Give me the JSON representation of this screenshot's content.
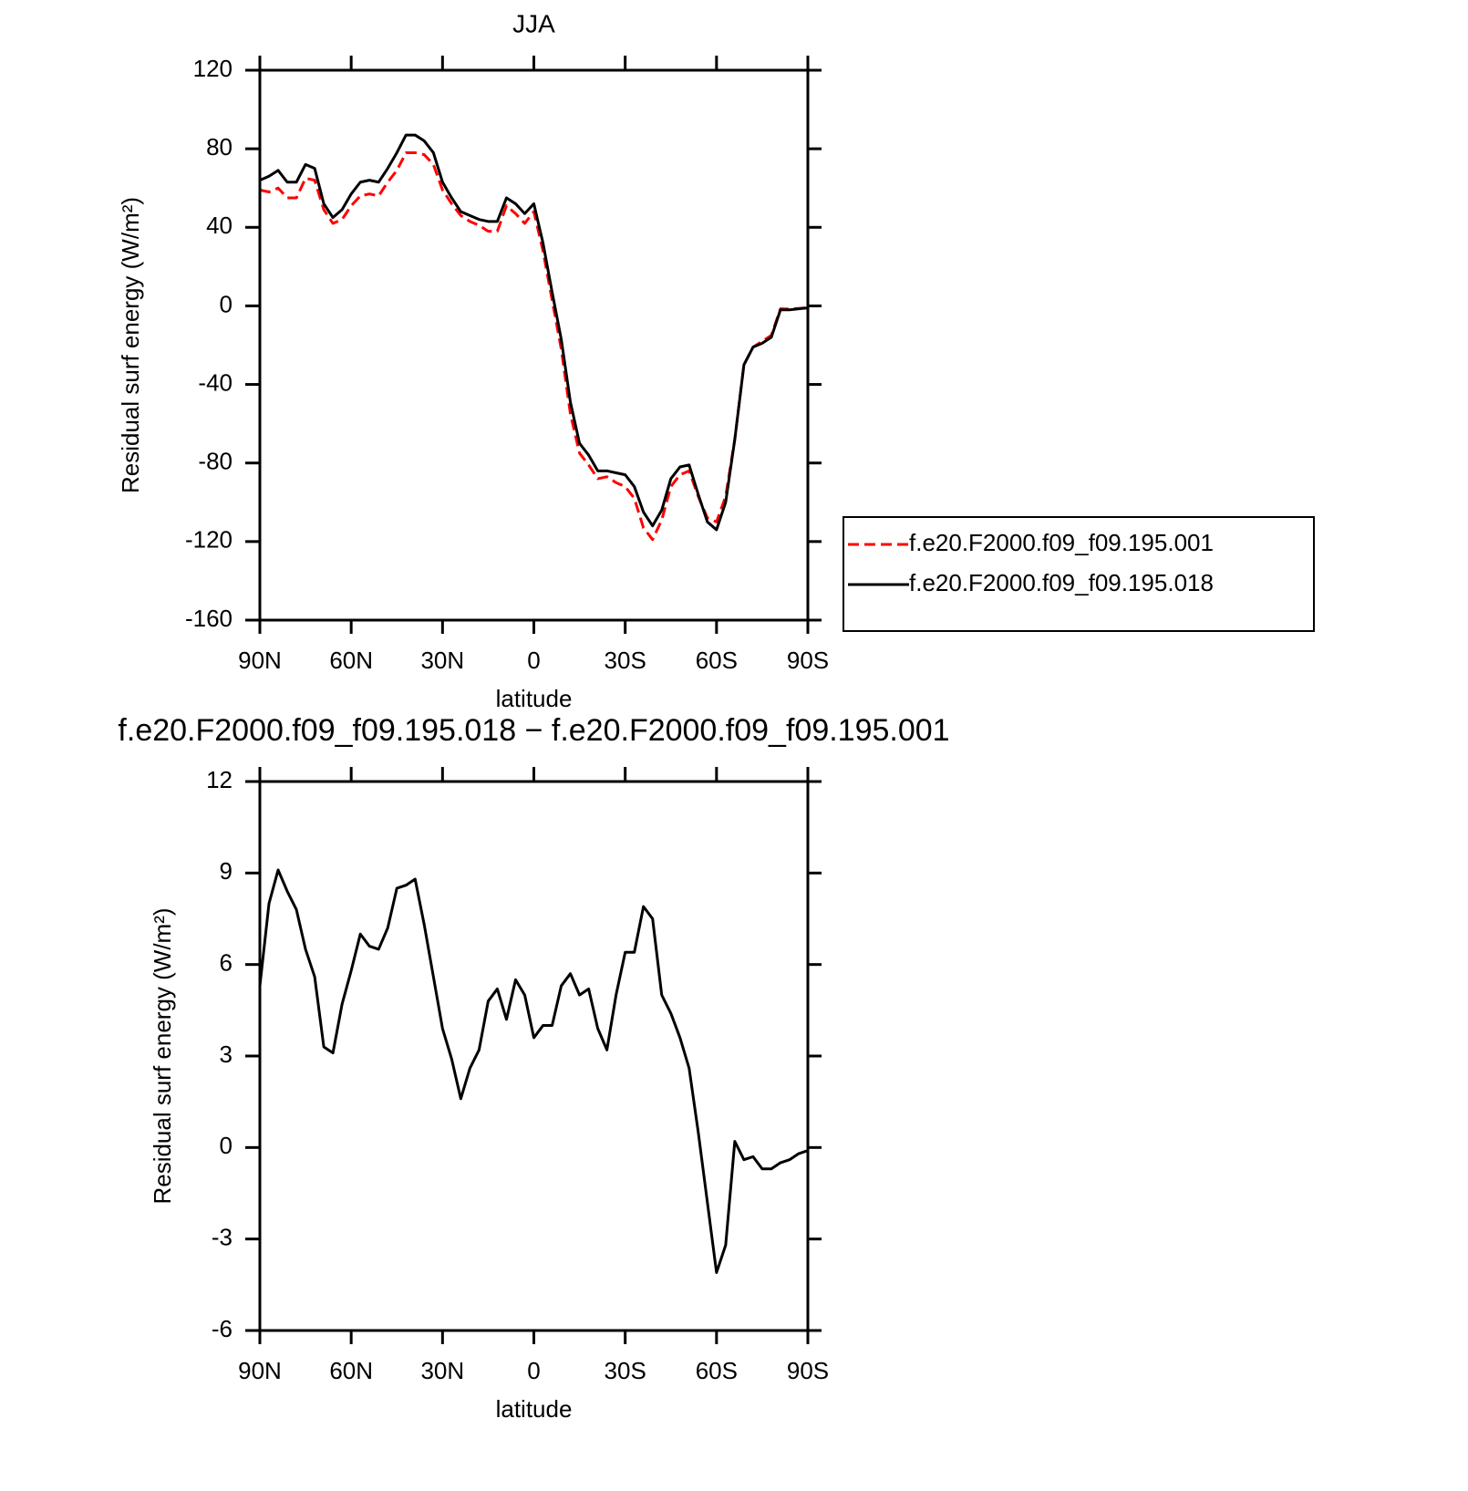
{
  "chart_data": [
    {
      "type": "line",
      "title": "JJA",
      "xlabel": "latitude",
      "ylabel": "Residual surf energy (W/m²)",
      "x": [
        90,
        87,
        84,
        81,
        78,
        75,
        72,
        69,
        66,
        63,
        60,
        57,
        54,
        51,
        48,
        45,
        42,
        39,
        36,
        33,
        30,
        27,
        24,
        21,
        18,
        15,
        12,
        9,
        6,
        3,
        0,
        -3,
        -6,
        -9,
        -12,
        -15,
        -18,
        -21,
        -24,
        -27,
        -30,
        -33,
        -36,
        -39,
        -42,
        -45,
        -48,
        -51,
        -54,
        -57,
        -60,
        -63,
        -66,
        -69,
        -72,
        -75,
        -78,
        -81,
        -84,
        -87,
        -90
      ],
      "xlim": [
        90,
        -90
      ],
      "xticks": [
        {
          "value": 90,
          "label": "90N"
        },
        {
          "value": 60,
          "label": "60N"
        },
        {
          "value": 30,
          "label": "30N"
        },
        0,
        {
          "value": -30,
          "label": "30S"
        },
        {
          "value": -60,
          "label": "60S"
        },
        {
          "value": -90,
          "label": "90S"
        }
      ],
      "ylim": [
        -160,
        120
      ],
      "yticks": [
        -160,
        -120,
        -80,
        -40,
        0,
        40,
        80,
        120
      ],
      "legend": "outside right",
      "series": [
        {
          "name": "f.e20.F2000.f09_f09.195.001",
          "color": "#ff0000",
          "style": "dashed",
          "values": [
            59,
            58,
            60,
            55,
            55,
            65,
            64,
            49,
            42,
            44,
            51,
            56,
            57,
            56,
            63,
            69,
            78,
            78,
            77,
            72,
            59,
            52,
            46,
            43,
            41,
            38,
            38,
            51,
            47,
            42,
            48,
            28,
            3,
            -22,
            -55,
            -75,
            -81,
            -88,
            -87,
            -90,
            -92,
            -98,
            -113,
            -119,
            -109,
            -92,
            -86,
            -84,
            -97,
            -108,
            -110,
            -97,
            -68,
            -30,
            -21,
            -18,
            -15,
            -1.5,
            -1.6,
            -1.3,
            -0.9
          ]
        },
        {
          "name": "f.e20.F2000.f09_f09.195.018",
          "color": "#000000",
          "style": "solid",
          "values": [
            64,
            66,
            69,
            63,
            63,
            72,
            70,
            52,
            45,
            49,
            57,
            63,
            64,
            63,
            70,
            78,
            87,
            87,
            84,
            78,
            63,
            55,
            48,
            46,
            44,
            43,
            43,
            55,
            52,
            47,
            52,
            32,
            7,
            -17,
            -49,
            -70,
            -76,
            -84,
            -84,
            -85,
            -86,
            -92,
            -105,
            -112,
            -104,
            -88,
            -82,
            -81,
            -96,
            -110,
            -114,
            -100,
            -68,
            -30,
            -21,
            -19,
            -16,
            -2,
            -2,
            -1.5,
            -1
          ]
        }
      ]
    },
    {
      "type": "line",
      "title": "f.e20.F2000.f09_f09.195.018 − f.e20.F2000.f09_f09.195.001",
      "xlabel": "latitude",
      "ylabel": "Residual surf energy (W/m²)",
      "x": [
        90,
        87,
        84,
        81,
        78,
        75,
        72,
        69,
        66,
        63,
        60,
        57,
        54,
        51,
        48,
        45,
        42,
        39,
        36,
        33,
        30,
        27,
        24,
        21,
        18,
        15,
        12,
        9,
        6,
        3,
        0,
        -3,
        -6,
        -9,
        -12,
        -15,
        -18,
        -21,
        -24,
        -27,
        -30,
        -33,
        -36,
        -39,
        -42,
        -45,
        -48,
        -51,
        -54,
        -57,
        -60,
        -63,
        -66,
        -69,
        -72,
        -75,
        -78,
        -81,
        -84,
        -87,
        -90
      ],
      "xlim": [
        90,
        -90
      ],
      "xticks": [
        {
          "value": 90,
          "label": "90N"
        },
        {
          "value": 60,
          "label": "60N"
        },
        {
          "value": 30,
          "label": "30N"
        },
        0,
        {
          "value": -30,
          "label": "30S"
        },
        {
          "value": -60,
          "label": "60S"
        },
        {
          "value": -90,
          "label": "90S"
        }
      ],
      "ylim": [
        -6,
        12
      ],
      "yticks": [
        -6,
        -3,
        0,
        3,
        6,
        9,
        12
      ],
      "series": [
        {
          "color": "#000000",
          "style": "solid",
          "values": [
            5.3,
            8.0,
            9.1,
            8.4,
            7.8,
            6.5,
            5.6,
            3.3,
            3.1,
            4.7,
            5.8,
            7.0,
            6.6,
            6.5,
            7.2,
            8.5,
            8.6,
            8.8,
            7.3,
            5.6,
            3.9,
            2.9,
            1.6,
            2.6,
            3.2,
            4.8,
            5.2,
            4.2,
            5.5,
            5.0,
            3.6,
            4.0,
            4.0,
            5.3,
            5.7,
            5.0,
            5.2,
            3.9,
            3.2,
            5.0,
            6.4,
            6.4,
            7.9,
            7.5,
            5.0,
            4.4,
            3.6,
            2.6,
            0.5,
            -1.8,
            -4.1,
            -3.2,
            0.2,
            -0.4,
            -0.3,
            -0.7,
            -0.7,
            -0.5,
            -0.4,
            -0.2,
            -0.1
          ]
        }
      ]
    }
  ]
}
